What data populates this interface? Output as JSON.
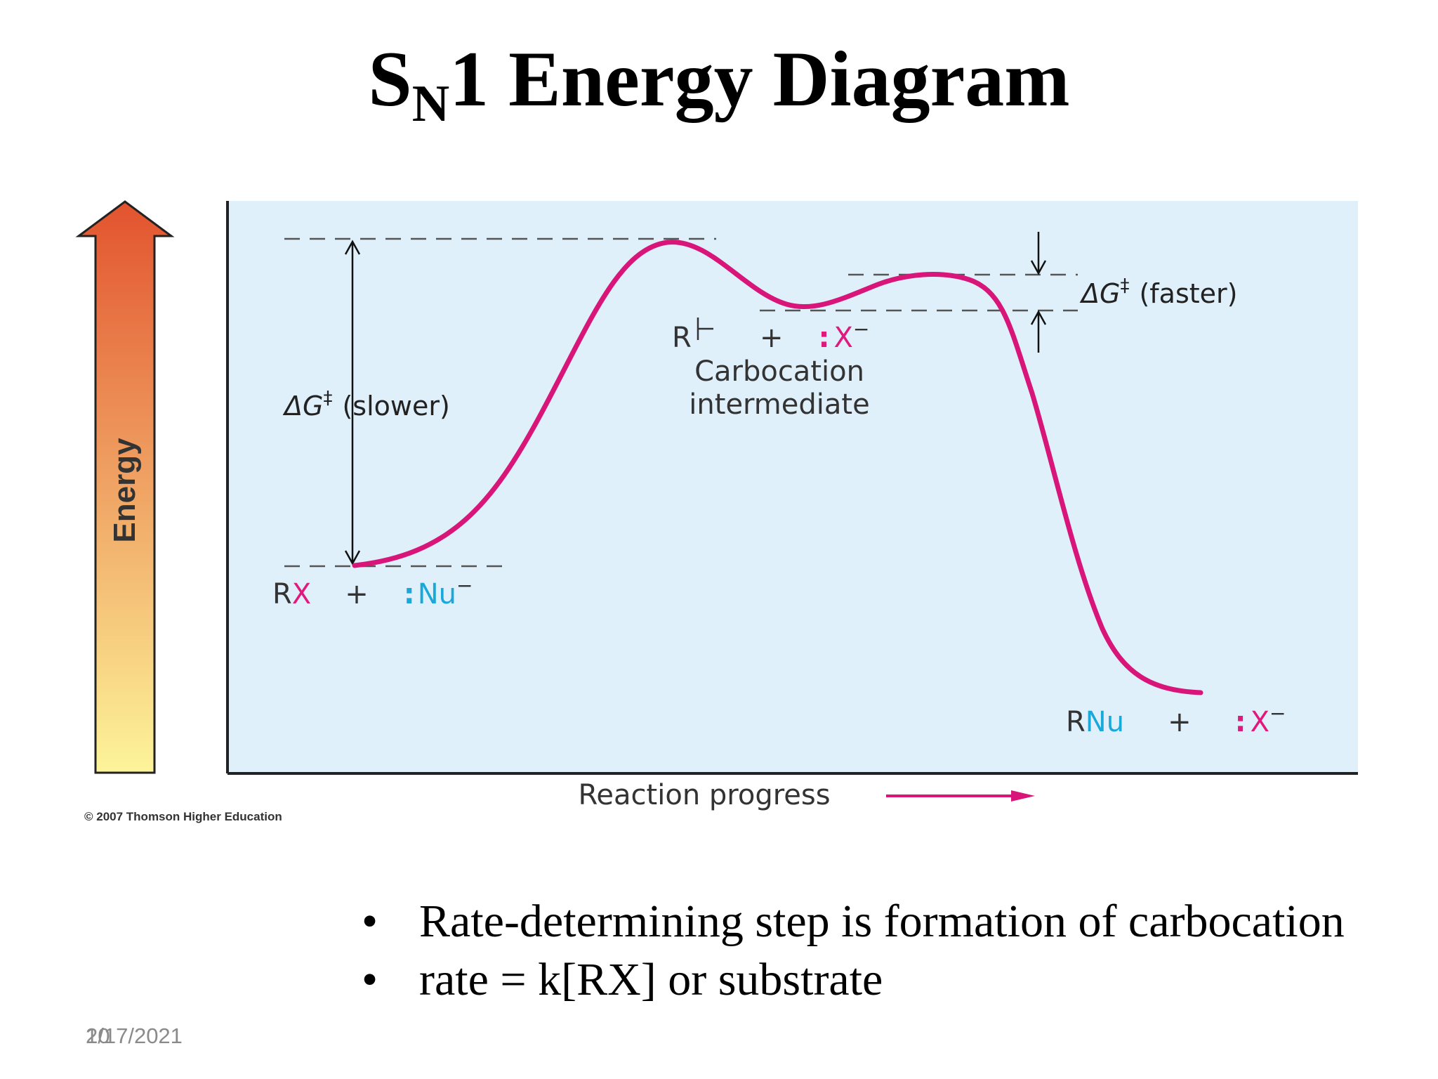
{
  "title": {
    "prefix": "S",
    "subscript": "N",
    "rest": "1 Energy Diagram"
  },
  "diagram": {
    "y_axis_label": "Energy",
    "x_axis_label": "Reaction progress",
    "delta_g_symbol": "ΔG",
    "double_dagger": "‡",
    "slower_label": "(slower)",
    "faster_label": "(faster)",
    "reactant_rx_r": "R",
    "reactant_rx_x": "X",
    "plus": "+",
    "nucleophile_colon": ":",
    "nucleophile": "Nu",
    "minus": "−",
    "carbocation_r": "R",
    "leaving_group_x": "X",
    "intermediate_line1": "Carbocation",
    "intermediate_line2": "intermediate",
    "product_r": "R",
    "product_nu": "Nu",
    "copyright": "© 2007 Thomson Higher Education",
    "colors": {
      "panel": "#dff0fb",
      "curve": "#d8167a",
      "magenta": "#e0197d",
      "cyan": "#19a8d8",
      "arrow_top": "#e2532e",
      "arrow_bottom": "#fdf49a"
    }
  },
  "bullets": [
    "Rate-determining step is formation of carbocation",
    "rate = k[RX] or substrate"
  ],
  "footer": {
    "page_number": "10",
    "date": "2/17/2021"
  }
}
